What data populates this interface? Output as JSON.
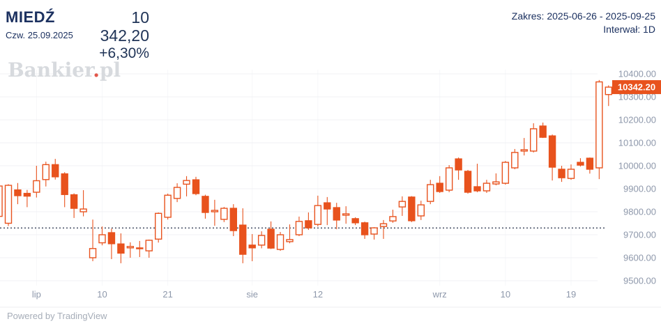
{
  "header": {
    "instrument": "MIEDŹ",
    "date": "Czw. 25.09.2025",
    "price": "10 342,20",
    "change": "+6,30%",
    "range_label": "Zakres: 2025-06-26 - 2025-09-25",
    "interval_label": "Interwał: 1D"
  },
  "watermark": {
    "part1": "Bankier",
    "dot": ".",
    "part2": "pl"
  },
  "footer": {
    "powered_by": "Powered by TradingView"
  },
  "colors": {
    "accent": "#e8521d",
    "navy": "#1c3160",
    "axis_text": "#8e98ab",
    "grid_h": "#f0f1f4",
    "grid_v": "#f6f7f9",
    "baseline": "#50596e",
    "tag_text": "#ffffff",
    "divider": "#eceef1"
  },
  "chart_data": {
    "type": "candlestick",
    "title": "MIEDŹ daily candlestick chart",
    "interval": "1D",
    "range": [
      "2025-06-26",
      "2025-09-25"
    ],
    "legend_position": "none",
    "grid": true,
    "y_axis": {
      "min": 9500,
      "max": 10400,
      "ticks": [
        {
          "value": 10400,
          "label": "10400.00"
        },
        {
          "value": 10300,
          "label": "10300.00"
        },
        {
          "value": 10200,
          "label": "10200.00"
        },
        {
          "value": 10100,
          "label": "10100.00"
        },
        {
          "value": 10000,
          "label": "10000.00"
        },
        {
          "value": 9900,
          "label": "9900.00"
        },
        {
          "value": 9800,
          "label": "9800.00"
        },
        {
          "value": 9700,
          "label": "9700.00"
        },
        {
          "value": 9600,
          "label": "9600.00"
        },
        {
          "value": 9500,
          "label": "9500.00"
        }
      ]
    },
    "x_ticks": [
      {
        "index": 4,
        "label": "lip"
      },
      {
        "index": 11,
        "label": "10"
      },
      {
        "index": 18,
        "label": "21"
      },
      {
        "index": 27,
        "label": "sie"
      },
      {
        "index": 34,
        "label": "12"
      },
      {
        "index": 47,
        "label": "wrz"
      },
      {
        "index": 54,
        "label": "10"
      },
      {
        "index": 61,
        "label": "19"
      }
    ],
    "baseline_value": 9729.3,
    "last_price": 10342.2,
    "last_price_label": "10342.20",
    "candles_format": [
      "open",
      "high",
      "low",
      "close"
    ],
    "candles": [
      [
        9780,
        9918,
        9768,
        9912
      ],
      [
        9750,
        9920,
        9738,
        9915
      ],
      [
        9895,
        9925,
        9833,
        9870
      ],
      [
        9880,
        9895,
        9820,
        9868
      ],
      [
        9885,
        10000,
        9862,
        9935
      ],
      [
        9940,
        10018,
        9910,
        10005
      ],
      [
        10005,
        10030,
        9940,
        9952
      ],
      [
        9965,
        9972,
        9820,
        9875
      ],
      [
        9874,
        9880,
        9773,
        9815
      ],
      [
        9800,
        9894,
        9780,
        9812
      ],
      [
        9600,
        9766,
        9585,
        9640
      ],
      [
        9665,
        9736,
        9654,
        9700
      ],
      [
        9709,
        9727,
        9594,
        9661
      ],
      [
        9660,
        9706,
        9576,
        9620
      ],
      [
        9643,
        9667,
        9600,
        9649
      ],
      [
        9638,
        9673,
        9603,
        9641
      ],
      [
        9630,
        9679,
        9600,
        9676
      ],
      [
        9681,
        9797,
        9666,
        9793
      ],
      [
        9776,
        9879,
        9766,
        9872
      ],
      [
        9858,
        9924,
        9842,
        9906
      ],
      [
        9920,
        9955,
        9867,
        9936
      ],
      [
        9939,
        9952,
        9872,
        9879
      ],
      [
        9867,
        9874,
        9770,
        9797
      ],
      [
        9800,
        9852,
        9739,
        9806
      ],
      [
        9767,
        9821,
        9755,
        9815
      ],
      [
        9815,
        9833,
        9694,
        9718
      ],
      [
        9742,
        9815,
        9576,
        9615
      ],
      [
        9655,
        9703,
        9585,
        9643
      ],
      [
        9655,
        9715,
        9641,
        9697
      ],
      [
        9724,
        9758,
        9638,
        9642
      ],
      [
        9636,
        9712,
        9630,
        9700
      ],
      [
        9670,
        9745,
        9663,
        9679
      ],
      [
        9700,
        9779,
        9694,
        9758
      ],
      [
        9761,
        9797,
        9721,
        9730
      ],
      [
        9745,
        9870,
        9736,
        9827
      ],
      [
        9839,
        9864,
        9742,
        9812
      ],
      [
        9818,
        9839,
        9724,
        9764
      ],
      [
        9785,
        9824,
        9748,
        9791
      ],
      [
        9770,
        9776,
        9742,
        9752
      ],
      [
        9752,
        9757,
        9682,
        9700
      ],
      [
        9703,
        9733,
        9679,
        9730
      ],
      [
        9736,
        9764,
        9682,
        9748
      ],
      [
        9760,
        9809,
        9752,
        9779
      ],
      [
        9821,
        9867,
        9782,
        9845
      ],
      [
        9864,
        9868,
        9755,
        9761
      ],
      [
        9782,
        9848,
        9764,
        9830
      ],
      [
        9845,
        9939,
        9833,
        9918
      ],
      [
        9924,
        9955,
        9882,
        9888
      ],
      [
        9894,
        10003,
        9885,
        9991
      ],
      [
        10030,
        10036,
        9939,
        9982
      ],
      [
        9976,
        9982,
        9879,
        9885
      ],
      [
        9909,
        10009,
        9885,
        9891
      ],
      [
        9891,
        9939,
        9882,
        9924
      ],
      [
        9921,
        9967,
        9915,
        9930
      ],
      [
        9924,
        10021,
        9918,
        10015
      ],
      [
        9991,
        10073,
        9985,
        10058
      ],
      [
        10064,
        10121,
        10045,
        10070
      ],
      [
        10064,
        10185,
        10058,
        10161
      ],
      [
        10173,
        10188,
        10121,
        10124
      ],
      [
        10130,
        10136,
        9936,
        9994
      ],
      [
        9985,
        10000,
        9930,
        9948
      ],
      [
        9945,
        10006,
        9939,
        9985
      ],
      [
        10015,
        10033,
        9997,
        10003
      ],
      [
        10033,
        10036,
        9966,
        9985
      ],
      [
        9991,
        10373,
        9942,
        10365
      ],
      [
        10310,
        10350,
        10260,
        10342.2
      ]
    ]
  }
}
